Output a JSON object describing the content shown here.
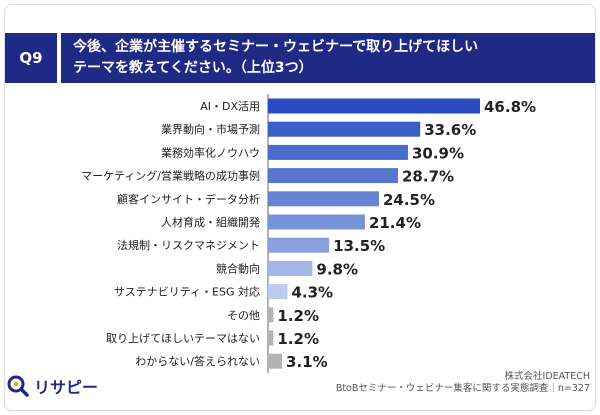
{
  "question": {
    "badge": "Q9",
    "line1": "今後、企業が主催するセミナー・ウェビナーで取り上げてほしい",
    "line2": "テーマを教えてください。（上位3つ）"
  },
  "chart_data": {
    "type": "bar",
    "orientation": "horizontal",
    "categories": [
      "AI・DX活用",
      "業界動向・市場予測",
      "業務効率化ノウハウ",
      "マーケティング/営業戦略の成功事例",
      "顧客インサイト・データ分析",
      "人材育成・組織開発",
      "法規制・リスクマネジメント",
      "競合動向",
      "サステナビリティ・ESG 対応",
      "その他",
      "取り上げてほしいテーマはない",
      "わからない/答えられない"
    ],
    "values": [
      46.8,
      33.6,
      30.9,
      28.7,
      24.5,
      21.4,
      13.5,
      9.8,
      4.3,
      1.2,
      1.2,
      3.1
    ],
    "value_labels": [
      "46.8%",
      "33.6%",
      "30.9%",
      "28.7%",
      "24.5%",
      "21.4%",
      "13.5%",
      "9.8%",
      "4.3%",
      "1.2%",
      "1.2%",
      "3.1%"
    ],
    "bar_colors": [
      "#2a4bc0",
      "#3a5ec8",
      "#4a6ccb",
      "#5777cf",
      "#6683d3",
      "#7892d8",
      "#8aa0dc",
      "#a3b6e5",
      "#bccbee",
      "#b3b3b3",
      "#b3b3b3",
      "#b3b3b3"
    ],
    "xlim": [
      0,
      50
    ],
    "grid": false,
    "legend": "none"
  },
  "footer": {
    "logo_text": "リサピー",
    "source_company": "株式会社IDEATECH",
    "source_survey": "BtoBセミナー・ウェビナー集客に関する実態調査｜n=327"
  },
  "colors": {
    "header_bg": "#1f2a85",
    "axis": "#666666"
  },
  "icons": {
    "logo": "magnifier-logo-icon"
  }
}
